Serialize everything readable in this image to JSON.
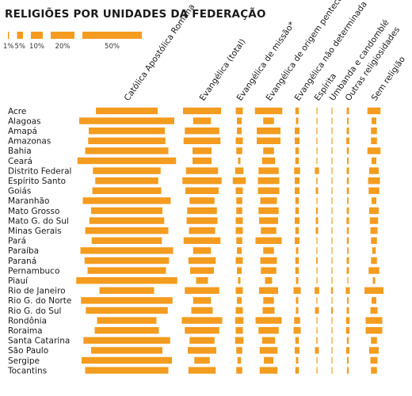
{
  "title": "RELIGIÕES POR UNIDADES DA FEDERAÇÃO",
  "colors": {
    "bar": "#f39c1f",
    "text": "#1a1a1a"
  },
  "chart_data": {
    "type": "bar",
    "orientation": "horizontal-centered-columns",
    "title": "RELIGIÕES POR UNIDADES DA FEDERAÇÃO",
    "scale_legend": [
      {
        "value": 1,
        "label": "1%"
      },
      {
        "value": 5,
        "label": "5%"
      },
      {
        "value": 10,
        "label": "10%"
      },
      {
        "value": 20,
        "label": "20%"
      },
      {
        "value": 50,
        "label": "50%"
      }
    ],
    "categories": [
      "Acre",
      "Alagoas",
      "Amapá",
      "Amazonas",
      "Bahia",
      "Ceará",
      "Distrito Federal",
      "Espírito Santo",
      "Goiás",
      "Maranhão",
      "Mato Grosso",
      "Mato G. do Sul",
      "Minas Gerais",
      "Pará",
      "Paraíba",
      "Paraná",
      "Pernambuco",
      "Piauí",
      "Rio de Janeiro",
      "Rio G. do Norte",
      "Rio G. do Sul",
      "Rondônia",
      "Roraima",
      "Santa Catarina",
      "São Paulo",
      "Sergipe",
      "Tocantins"
    ],
    "series": [
      {
        "name": "Católica Apostólica Romana",
        "values": [
          52,
          80,
          64,
          65,
          70,
          83,
          57,
          53,
          58,
          74,
          60,
          63,
          70,
          59,
          78,
          71,
          66,
          85,
          46,
          77,
          69,
          50,
          54,
          73,
          60,
          76,
          70
        ]
      },
      {
        "name": "Evangélica (total)",
        "values": [
          32,
          15,
          29,
          31,
          16,
          16,
          27,
          33,
          28,
          21,
          25,
          26,
          22,
          31,
          15,
          23,
          20,
          10,
          29,
          15,
          18,
          34,
          29,
          21,
          24,
          13,
          23
        ]
      },
      {
        "name": "Evangélica de missão*",
        "values": [
          6,
          4,
          4,
          6,
          5,
          2,
          7,
          11,
          6,
          5,
          5,
          6,
          6,
          5,
          4,
          6,
          4,
          2,
          6,
          4,
          6,
          7,
          6,
          7,
          5,
          3,
          5
        ]
      },
      {
        "name": "Evangélica de origem pentecostal**",
        "values": [
          23,
          9,
          20,
          20,
          9,
          11,
          17,
          18,
          18,
          14,
          17,
          16,
          13,
          22,
          9,
          14,
          13,
          6,
          16,
          9,
          10,
          22,
          17,
          11,
          15,
          8,
          15
        ]
      },
      {
        "name": "Evangélica não determinada",
        "values": [
          3,
          2,
          4,
          4,
          3,
          3,
          5,
          4,
          4,
          3,
          3,
          4,
          3,
          4,
          2,
          3,
          3,
          2,
          6,
          2,
          2,
          5,
          6,
          3,
          4,
          2,
          3
        ]
      },
      {
        "name": "Espírita",
        "values": [
          0.6,
          0.5,
          0.8,
          0.6,
          0.4,
          0.3,
          3.5,
          1,
          2,
          0.5,
          1.5,
          2,
          2.1,
          0.5,
          0.4,
          1.2,
          0.6,
          0.2,
          3.9,
          0.6,
          3.2,
          0.8,
          0.7,
          1,
          3.3,
          0.4,
          0.6
        ]
      },
      {
        "name": "Umbanda e candomblé",
        "values": [
          0.3,
          0.2,
          0.4,
          0.2,
          0.3,
          0.1,
          0.5,
          0.4,
          0.2,
          0.2,
          0.4,
          0.3,
          0.3,
          0.2,
          0.1,
          0.4,
          0.5,
          0.1,
          1.6,
          0.2,
          1.5,
          0.1,
          0.3,
          0.2,
          0.3,
          0.2,
          0.1
        ]
      },
      {
        "name": "Outras religiosidades",
        "values": [
          2,
          1.3,
          2,
          2.5,
          1.7,
          1.3,
          2,
          1.6,
          1.8,
          1.2,
          1.8,
          2.2,
          1.7,
          1.6,
          1.2,
          2,
          2,
          0.7,
          3.5,
          1.3,
          2,
          3,
          3,
          1.6,
          2.8,
          1.4,
          1.5
        ]
      },
      {
        "name": "Sem religião",
        "values": [
          11,
          4,
          5,
          5,
          11,
          4,
          8,
          10,
          9,
          4,
          8,
          7,
          6,
          5,
          3,
          5,
          9,
          2,
          16,
          4,
          6,
          14,
          14,
          5,
          8,
          6,
          5
        ]
      }
    ]
  }
}
